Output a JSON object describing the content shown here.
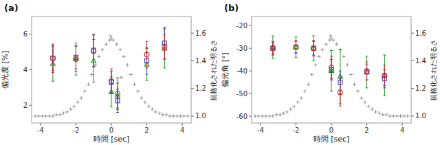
{
  "chart_data": [
    {
      "type": "scatter",
      "title": "(a)",
      "x_label": "時間 [sec]",
      "y_label": "偏光度 [%]",
      "y2_label": "規格化された明るさ",
      "xlim": [
        -4.5,
        4.5
      ],
      "xticks": [
        -4,
        -2,
        0,
        2,
        4
      ],
      "ylim": [
        1.0,
        7.0
      ],
      "yticks": [
        2,
        4,
        6
      ],
      "y2lim": [
        0.95,
        1.72
      ],
      "y2ticks": [
        {
          "value": 1.0,
          "label": "1.0"
        },
        1.2,
        1.4,
        1.6
      ],
      "series": [
        {
          "axis": "y2",
          "marker": "plus",
          "color": "#888888",
          "x": [
            -4.3,
            -4.1,
            -3.9,
            -3.7,
            -3.5,
            -3.3,
            -3.1,
            -2.9,
            -2.7,
            -2.5,
            -2.3,
            -2.1,
            -1.9,
            -1.7,
            -1.5,
            -1.3,
            -1.1,
            -0.9,
            -0.7,
            -0.5,
            -0.3,
            -0.1,
            0.0,
            0.1,
            0.3,
            0.5,
            0.7,
            0.9,
            1.1,
            1.3,
            1.5,
            1.7,
            1.9,
            2.1,
            2.3,
            2.5,
            2.7,
            2.9,
            3.1,
            3.3,
            3.5,
            3.7,
            3.9,
            4.1,
            4.3
          ],
          "values": [
            1.0,
            1.0,
            1.0,
            1.0,
            1.0,
            1.0,
            1.01,
            1.01,
            1.02,
            1.03,
            1.05,
            1.07,
            1.1,
            1.13,
            1.18,
            1.23,
            1.3,
            1.37,
            1.43,
            1.48,
            1.52,
            1.55,
            1.56,
            1.55,
            1.52,
            1.48,
            1.43,
            1.37,
            1.3,
            1.23,
            1.18,
            1.13,
            1.1,
            1.07,
            1.05,
            1.03,
            1.02,
            1.01,
            1.01,
            1.0,
            1.0,
            1.0,
            1.0,
            1.0,
            1.0
          ]
        },
        {
          "axis": "y2",
          "marker": "plus",
          "color": "#888888",
          "x": [
            -0.05,
            0.55
          ],
          "values": [
            1.58,
            1.28
          ]
        },
        {
          "marker": "triangle",
          "color": "#119911",
          "x": [
            -3.3,
            -2.0,
            -1.0,
            0.0,
            0.35,
            2.0,
            3.0
          ],
          "values": [
            4.35,
            4.6,
            4.5,
            2.75,
            2.55,
            4.3,
            5.2
          ],
          "errors": [
            1.0,
            0.9,
            1.2,
            0.85,
            0.7,
            0.9,
            1.1
          ]
        },
        {
          "marker": "square",
          "color": "#2244cc",
          "x": [
            -3.3,
            -2.0,
            -1.0,
            0.0,
            0.35,
            2.0,
            3.0
          ],
          "values": [
            4.65,
            4.7,
            5.1,
            3.3,
            2.25,
            4.5,
            5.5
          ],
          "errors": [
            0.7,
            0.65,
            0.9,
            0.6,
            0.65,
            0.75,
            0.9
          ]
        },
        {
          "marker": "circle",
          "color": "#cc2222",
          "x": [
            -3.3,
            -2.0,
            -1.0,
            0.0,
            0.35,
            2.0,
            3.0
          ],
          "values": [
            4.65,
            4.6,
            5.05,
            3.35,
            2.65,
            4.85,
            5.3
          ],
          "errors": [
            0.8,
            0.7,
            0.9,
            0.7,
            0.9,
            0.75,
            0.7
          ]
        }
      ]
    },
    {
      "type": "scatter",
      "title": "(b)",
      "x_label": "時間 [sec]",
      "y_label": "偏光角 [°]",
      "y2_label": "規格化された明るさ",
      "xlim": [
        -4.5,
        4.5
      ],
      "xticks": [
        -4,
        -2,
        0,
        2,
        4
      ],
      "ylim": [
        -63,
        -16
      ],
      "yticks": [
        -60,
        -50,
        -40,
        -30,
        -20
      ],
      "y2lim": [
        0.95,
        1.72
      ],
      "y2ticks": [
        {
          "value": 1.0,
          "label": "1.0"
        },
        1.2,
        1.4,
        1.6
      ],
      "series": [
        {
          "axis": "y2",
          "marker": "plus",
          "color": "#888888",
          "x": [
            -4.3,
            -4.1,
            -3.9,
            -3.7,
            -3.5,
            -3.3,
            -3.1,
            -2.9,
            -2.7,
            -2.5,
            -2.3,
            -2.1,
            -1.9,
            -1.7,
            -1.5,
            -1.3,
            -1.1,
            -0.9,
            -0.7,
            -0.5,
            -0.3,
            -0.1,
            0.0,
            0.1,
            0.3,
            0.5,
            0.7,
            0.9,
            1.1,
            1.3,
            1.5,
            1.7,
            1.9,
            2.1,
            2.3,
            2.5,
            2.7,
            2.9,
            3.1,
            3.3,
            3.5,
            3.7,
            3.9,
            4.1,
            4.3
          ],
          "values": [
            1.0,
            1.0,
            1.0,
            1.0,
            1.0,
            1.0,
            1.01,
            1.01,
            1.02,
            1.03,
            1.05,
            1.07,
            1.1,
            1.13,
            1.18,
            1.23,
            1.3,
            1.37,
            1.43,
            1.48,
            1.52,
            1.55,
            1.56,
            1.55,
            1.52,
            1.48,
            1.43,
            1.37,
            1.3,
            1.23,
            1.18,
            1.13,
            1.1,
            1.07,
            1.05,
            1.03,
            1.02,
            1.01,
            1.01,
            1.0,
            1.0,
            1.0,
            1.0,
            1.0,
            1.0
          ]
        },
        {
          "axis": "y2",
          "marker": "plus",
          "color": "#888888",
          "x": [
            -0.05,
            0.55
          ],
          "values": [
            1.58,
            1.28
          ]
        },
        {
          "marker": "triangle",
          "color": "#119911",
          "x": [
            -3.3,
            -2.0,
            -1.0,
            0.0,
            0.5,
            2.0,
            3.0
          ],
          "values": [
            -29.5,
            -29.5,
            -30.0,
            -40.0,
            -42.5,
            -40.5,
            -42.0
          ],
          "errors": [
            5.0,
            4.5,
            5.5,
            9.0,
            12.0,
            7.0,
            9.0
          ]
        },
        {
          "marker": "square",
          "color": "#2244cc",
          "x": [
            -3.3,
            -2.0,
            -1.0,
            0.0,
            0.5,
            2.0,
            3.0
          ],
          "values": [
            -30.0,
            -29.5,
            -30.0,
            -39.5,
            -45.0,
            -40.5,
            -43.5
          ],
          "errors": [
            2.5,
            2.5,
            3.0,
            4.5,
            5.0,
            3.5,
            4.0
          ]
        },
        {
          "marker": "circle",
          "color": "#cc2222",
          "x": [
            -3.3,
            -2.0,
            -1.0,
            0.0,
            0.5,
            2.0,
            3.0
          ],
          "values": [
            -30.0,
            -29.5,
            -30.0,
            -38.5,
            -49.5,
            -40.0,
            -42.0
          ],
          "errors": [
            3.0,
            3.0,
            3.5,
            5.0,
            6.0,
            4.0,
            4.5
          ]
        }
      ]
    }
  ]
}
